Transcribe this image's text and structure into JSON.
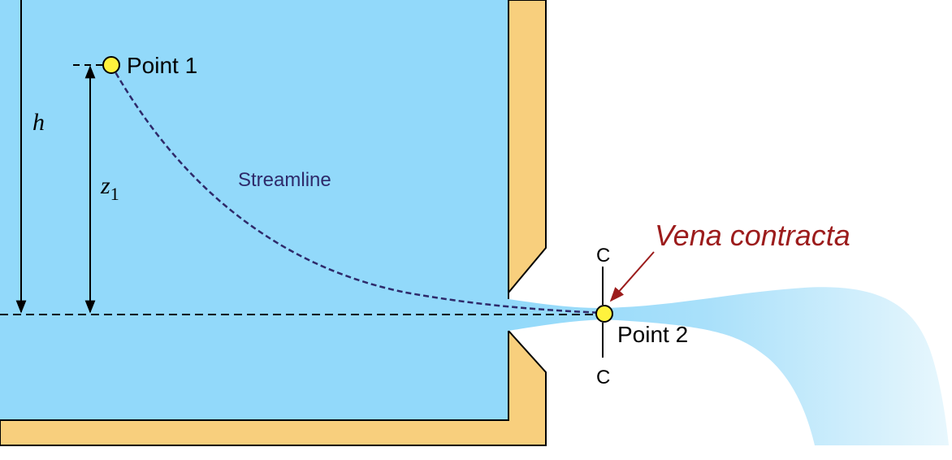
{
  "labels": {
    "point1": "Point 1",
    "point2": "Point 2",
    "streamline": "Streamline",
    "vena_contracta": "Vena contracta",
    "h": "h",
    "z_symbol": "z",
    "z_subscript": "1",
    "section_top": "C",
    "section_bottom": "C"
  },
  "colors": {
    "water": "#92d9fa",
    "tank_wall": "#f8cf7d",
    "outline": "#000000",
    "streamline": "#2e2a6a",
    "vena_contracta": "#9c1c1c",
    "point_marker": "#fff23d",
    "jet": "#92d9fa"
  }
}
